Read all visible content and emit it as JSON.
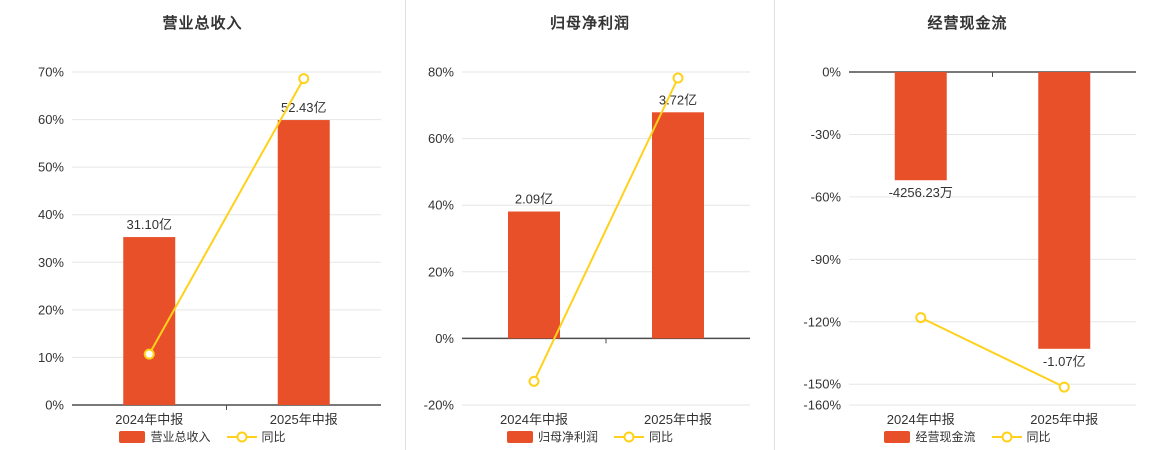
{
  "colors": {
    "bar": "#e8502a",
    "line": "#ffd11a",
    "grid": "#e6e6e6",
    "axis": "#4d4d4d",
    "text": "#333333",
    "divider": "#e0e0e0"
  },
  "chart_data": [
    {
      "type": "bar",
      "title": "营业总收入",
      "categories": [
        "2024年中报",
        "2025年中报"
      ],
      "ylim": [
        0,
        70
      ],
      "yticks": [
        0,
        10,
        20,
        30,
        40,
        50,
        60,
        70
      ],
      "yaxis_format": "percent",
      "axis_line_at": 0,
      "grid": true,
      "legend_position": "bottom",
      "bar_series": {
        "name": "营业总收入",
        "display_pct": [
          35.3,
          59.9
        ],
        "labels": [
          "31.10亿",
          "52.43亿"
        ]
      },
      "line_series": {
        "name": "同比",
        "values_pct": [
          10.7,
          68.6
        ]
      }
    },
    {
      "type": "bar",
      "title": "归母净利润",
      "categories": [
        "2024年中报",
        "2025年中报"
      ],
      "ylim": [
        -20,
        80
      ],
      "yticks": [
        -20,
        0,
        20,
        40,
        60,
        80
      ],
      "yaxis_format": "percent",
      "axis_line_at": 0,
      "grid": true,
      "legend_position": "bottom",
      "bar_series": {
        "name": "归母净利润",
        "display_pct": [
          38.1,
          67.9
        ],
        "labels": [
          "2.09亿",
          "3.72亿"
        ]
      },
      "line_series": {
        "name": "同比",
        "values_pct": [
          -12.9,
          78.2
        ]
      }
    },
    {
      "type": "bar",
      "title": "经营现金流",
      "categories": [
        "2024年中报",
        "2025年中报"
      ],
      "ylim": [
        -160,
        0
      ],
      "yticks": [
        0,
        -30,
        -60,
        -90,
        -120,
        -150,
        -160
      ],
      "yaxis_format": "percent",
      "axis_line_at": 0,
      "grid": true,
      "legend_position": "bottom",
      "bar_series": {
        "name": "经营现金流",
        "display_pct": [
          -52,
          -133
        ],
        "labels": [
          "-4256.23万",
          "-1.07亿"
        ]
      },
      "line_series": {
        "name": "同比",
        "values_pct": [
          -118,
          -151.4
        ]
      }
    }
  ]
}
